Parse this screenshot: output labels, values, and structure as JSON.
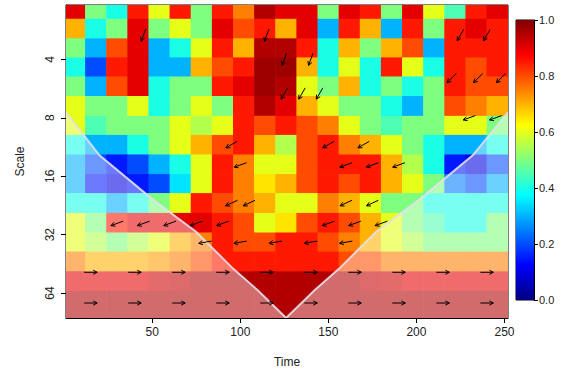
{
  "chart_data": {
    "type": "heatmap",
    "xlabel": "Time",
    "ylabel": "Scale",
    "log": "y",
    "xlim": [
      1,
      252
    ],
    "xticks": [
      50,
      100,
      150,
      200,
      250
    ],
    "ylim": [
      2.1,
      86
    ],
    "yticks": [
      4,
      8,
      16,
      32,
      64
    ],
    "cells": {
      "time": [
        6,
        18,
        30,
        42,
        54,
        66,
        78,
        90,
        102,
        114,
        126,
        138,
        150,
        162,
        174,
        186,
        198,
        210,
        222,
        234,
        246
      ],
      "scale": [
        2.2,
        2.8,
        3.5,
        4.4,
        5.5,
        7,
        8.8,
        11,
        14,
        17.5,
        22,
        28,
        35,
        44,
        56,
        70
      ],
      "values": [
        [
          0.9,
          0.5,
          0.4,
          0.85,
          0.6,
          0.85,
          0.5,
          0.85,
          0.75,
          0.95,
          0.9,
          0.9,
          0.5,
          0.9,
          0.85,
          0.5,
          0.9,
          0.6,
          0.45,
          0.85,
          0.9
        ],
        [
          0.7,
          0.4,
          0.5,
          0.9,
          0.5,
          0.6,
          0.5,
          0.9,
          0.8,
          0.85,
          0.7,
          0.9,
          0.3,
          0.85,
          0.7,
          0.3,
          0.85,
          0.5,
          0.85,
          0.9,
          0.85
        ],
        [
          0.5,
          0.3,
          0.8,
          0.9,
          0.3,
          0.4,
          0.6,
          0.85,
          0.7,
          0.95,
          0.95,
          0.85,
          0.4,
          0.7,
          0.5,
          0.7,
          0.8,
          0.3,
          0.85,
          0.85,
          0.85
        ],
        [
          0.4,
          0.2,
          0.85,
          0.9,
          0.3,
          0.3,
          0.7,
          0.8,
          0.85,
          0.97,
          0.97,
          0.7,
          0.4,
          0.6,
          0.4,
          0.85,
          0.6,
          0.4,
          0.85,
          0.8,
          0.85
        ],
        [
          0.5,
          0.3,
          0.8,
          0.9,
          0.4,
          0.5,
          0.5,
          0.85,
          0.9,
          0.97,
          0.95,
          0.6,
          0.5,
          0.7,
          0.4,
          0.5,
          0.4,
          0.5,
          0.85,
          0.8,
          0.8
        ],
        [
          0.6,
          0.5,
          0.5,
          0.6,
          0.4,
          0.5,
          0.6,
          0.5,
          0.85,
          0.95,
          0.9,
          0.7,
          0.6,
          0.5,
          0.5,
          0.4,
          0.3,
          0.5,
          0.8,
          0.75,
          0.7
        ],
        [
          0.6,
          0.45,
          0.5,
          0.5,
          0.5,
          0.6,
          0.55,
          0.6,
          0.85,
          0.8,
          0.85,
          0.8,
          0.75,
          0.6,
          0.5,
          0.45,
          0.5,
          0.5,
          0.6,
          0.6,
          0.5
        ],
        [
          0.4,
          0.3,
          0.3,
          0.4,
          0.5,
          0.6,
          0.7,
          0.8,
          0.85,
          0.7,
          0.55,
          0.8,
          0.85,
          0.75,
          0.7,
          0.6,
          0.5,
          0.4,
          0.3,
          0.3,
          0.4
        ],
        [
          0.3,
          0.2,
          0.15,
          0.2,
          0.3,
          0.4,
          0.6,
          0.85,
          0.75,
          0.6,
          0.6,
          0.8,
          0.85,
          0.85,
          0.85,
          0.7,
          0.55,
          0.4,
          0.15,
          0.1,
          0.2
        ],
        [
          0.3,
          0.15,
          0.1,
          0.15,
          0.2,
          0.35,
          0.6,
          0.85,
          0.75,
          0.65,
          0.7,
          0.8,
          0.85,
          0.8,
          0.85,
          0.7,
          0.6,
          0.5,
          0.25,
          0.2,
          0.3
        ],
        [
          0.4,
          0.4,
          0.3,
          0.4,
          0.5,
          0.6,
          0.85,
          0.8,
          0.75,
          0.7,
          0.6,
          0.6,
          0.75,
          0.7,
          0.6,
          0.5,
          0.5,
          0.4,
          0.4,
          0.4,
          0.4
        ],
        [
          0.6,
          0.5,
          0.85,
          0.9,
          0.9,
          0.9,
          0.9,
          0.85,
          0.8,
          0.6,
          0.65,
          0.8,
          0.85,
          0.8,
          0.7,
          0.6,
          0.5,
          0.45,
          0.4,
          0.4,
          0.5
        ],
        [
          0.6,
          0.55,
          0.5,
          0.55,
          0.6,
          0.7,
          0.75,
          0.85,
          0.8,
          0.8,
          0.85,
          0.85,
          0.8,
          0.75,
          0.7,
          0.6,
          0.55,
          0.5,
          0.5,
          0.5,
          0.5
        ],
        [
          0.75,
          0.7,
          0.7,
          0.7,
          0.72,
          0.75,
          0.8,
          0.85,
          0.85,
          0.85,
          0.85,
          0.85,
          0.85,
          0.8,
          0.8,
          0.75,
          0.75,
          0.75,
          0.75,
          0.75,
          0.75
        ],
        [
          0.9,
          0.9,
          0.9,
          0.9,
          0.92,
          0.93,
          0.95,
          0.95,
          0.95,
          0.95,
          0.95,
          0.95,
          0.95,
          0.95,
          0.93,
          0.92,
          0.9,
          0.9,
          0.9,
          0.9,
          0.9
        ],
        [
          0.95,
          0.95,
          0.95,
          0.95,
          0.95,
          0.95,
          0.95,
          0.95,
          0.95,
          0.95,
          0.95,
          0.95,
          0.95,
          0.95,
          0.95,
          0.95,
          0.95,
          0.95,
          0.95,
          0.95,
          0.95
        ]
      ]
    },
    "colorbar": {
      "range": [
        0,
        1
      ],
      "ticks": [
        {
          "value": 0,
          "label": "0.0"
        },
        {
          "value": 0.2,
          "label": "0.2"
        },
        {
          "value": 0.4,
          "label": "0.4"
        },
        {
          "value": 0.6,
          "label": "0.6"
        },
        {
          "value": 0.8,
          "label": "0.8"
        },
        {
          "value": 1,
          "label": "1.0"
        }
      ]
    },
    "cone_of_influence": {
      "time": [
        1,
        20,
        50,
        75,
        96,
        110,
        126,
        142,
        156,
        177,
        202,
        232,
        252
      ],
      "scale": [
        7.5,
        12.5,
        21,
        31,
        48,
        62,
        86,
        62,
        48,
        31,
        21,
        12.5,
        7.5
      ]
    },
    "phase_arrows": {
      "time": [
        15,
        40,
        65,
        90,
        115,
        140,
        165,
        190,
        215,
        240,
        15,
        40,
        65,
        90,
        115,
        140,
        165,
        190,
        215,
        240,
        80,
        100,
        120,
        140,
        160,
        30,
        45,
        60,
        75,
        90,
        150,
        165,
        180,
        95,
        105,
        160,
        175,
        100,
        160,
        175,
        190,
        95,
        150,
        170,
        125,
        135,
        145,
        125,
        140,
        45,
        115,
        220,
        235,
        248,
        225,
        240,
        230,
        245
      ],
      "scale": [
        50,
        50,
        50,
        50,
        50,
        50,
        50,
        50,
        50,
        50,
        72,
        72,
        72,
        72,
        72,
        72,
        72,
        72,
        72,
        72,
        35,
        35,
        35,
        35,
        35,
        28,
        28,
        28,
        28,
        28,
        28,
        28,
        28,
        22,
        22,
        22,
        22,
        14,
        14,
        14,
        14,
        11,
        11,
        11,
        6,
        6,
        6,
        4,
        4,
        3,
        3,
        5,
        5,
        5,
        3,
        3,
        8,
        8
      ],
      "angle": [
        0,
        0,
        0,
        0,
        0,
        0,
        0,
        0,
        0,
        0,
        0,
        0,
        0,
        0,
        0,
        0,
        0,
        0,
        0,
        0,
        190,
        190,
        190,
        190,
        190,
        200,
        200,
        200,
        200,
        200,
        200,
        200,
        200,
        205,
        205,
        205,
        205,
        200,
        200,
        200,
        200,
        210,
        210,
        210,
        240,
        240,
        240,
        250,
        250,
        250,
        250,
        225,
        225,
        225,
        240,
        240,
        200,
        200
      ]
    }
  }
}
